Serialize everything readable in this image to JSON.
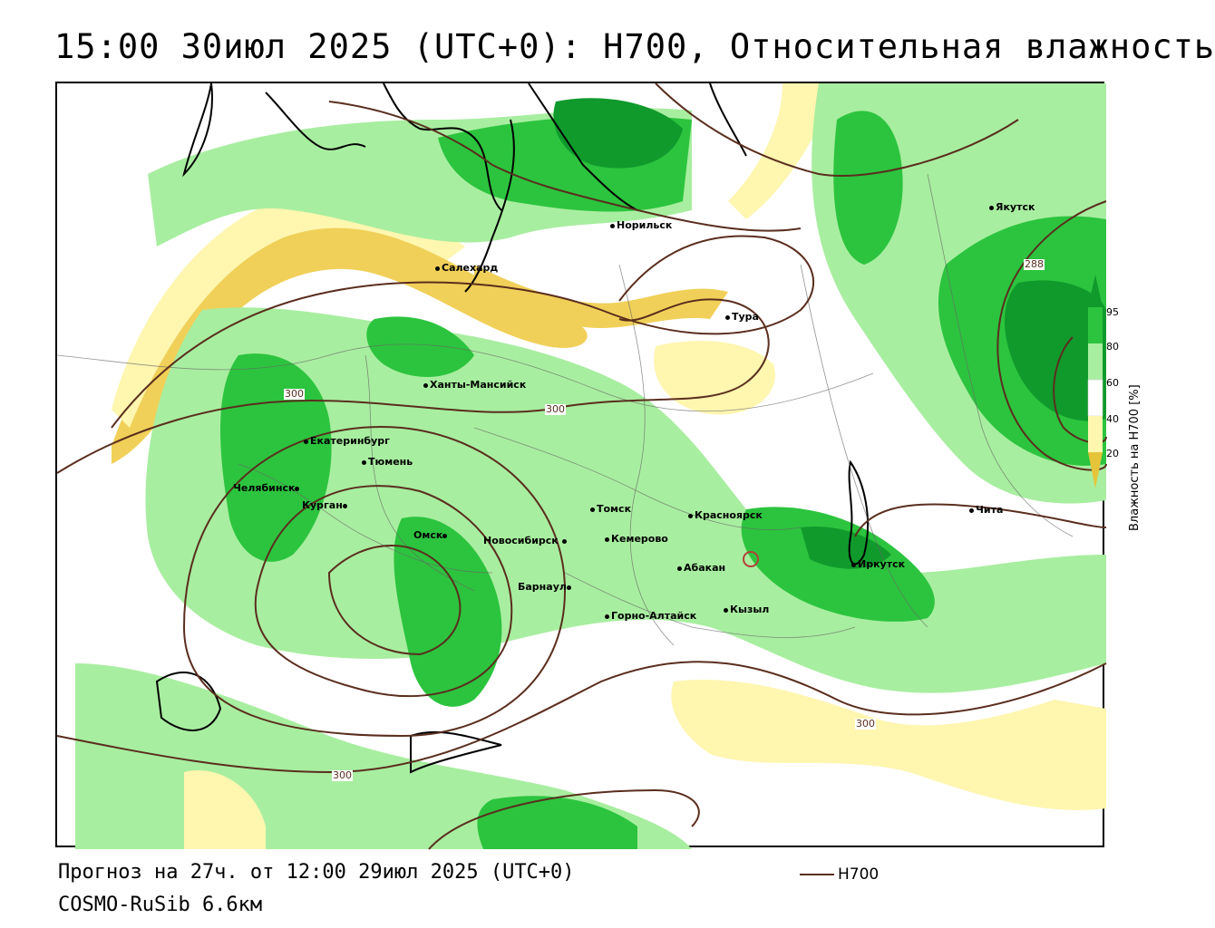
{
  "title": "15:00 30июл 2025 (UTC+0): H700, Относительная влажность",
  "footer": {
    "forecast": "Прогноз на 27ч. от 12:00 29июл 2025 (UTC+0)",
    "model": "COSMO-RuSib 6.6км"
  },
  "legend": {
    "series_label": "H700",
    "line_color": "#5a2e1e"
  },
  "colorbar": {
    "title": "Влажность на H700 [%]",
    "ticks": [
      "95",
      "80",
      "60",
      "40",
      "20"
    ],
    "colors": {
      "gt95": "#109a2c",
      "80_95": "#2cc43e",
      "60_80": "#a8eea0",
      "40_60": "#ffffff",
      "20_40": "#fff6b0",
      "lt20": "#e6c43a"
    }
  },
  "cities": [
    {
      "name": "Норильск"
    },
    {
      "name": "Якутск"
    },
    {
      "name": "Салехард"
    },
    {
      "name": "Тура"
    },
    {
      "name": "Ханты-Мансийск"
    },
    {
      "name": "Екатеринбург"
    },
    {
      "name": "Тюмень"
    },
    {
      "name": "Челябинск"
    },
    {
      "name": "Курган"
    },
    {
      "name": "Омск"
    },
    {
      "name": "Новосибирск"
    },
    {
      "name": "Томск"
    },
    {
      "name": "Кемерово"
    },
    {
      "name": "Красноярск"
    },
    {
      "name": "Барнаул"
    },
    {
      "name": "Абакан"
    },
    {
      "name": "Иркутск"
    },
    {
      "name": "Чита"
    },
    {
      "name": "Горно-Алтайск"
    },
    {
      "name": "Кызыл"
    }
  ],
  "isolines": [
    {
      "label": "300"
    },
    {
      "label": "300"
    },
    {
      "label": "288"
    },
    {
      "label": "300"
    },
    {
      "label": "300"
    }
  ]
}
